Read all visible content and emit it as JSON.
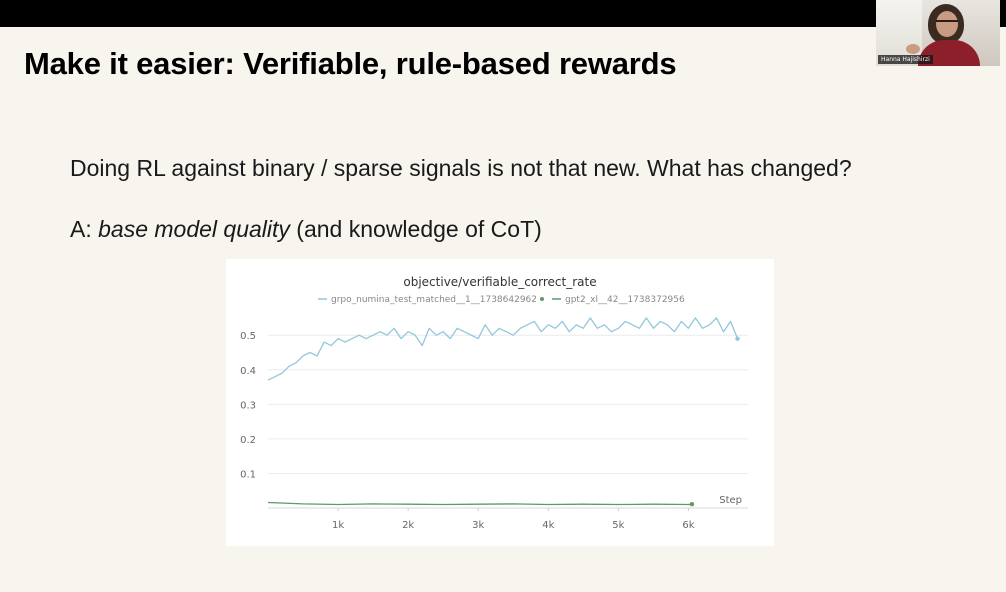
{
  "slide": {
    "title": "Make it easier: Verifiable, rule-based rewards",
    "line1": "Doing RL against binary / sparse signals is not that new. What has changed?",
    "line2_prefix": "A: ",
    "line2_em": "base model quality",
    "line2_suffix": " (and knowledge of CoT)"
  },
  "webcam": {
    "name_label": "Hanna Hajishirzi"
  },
  "chart_data": {
    "type": "line",
    "title": "objective/verifiable_correct_rate",
    "xlabel": "Step",
    "ylabel": "",
    "xlim": [
      0,
      6850
    ],
    "ylim": [
      0,
      0.57
    ],
    "x_ticks": [
      1000,
      2000,
      3000,
      4000,
      5000,
      6000
    ],
    "x_tick_labels": [
      "1k",
      "2k",
      "3k",
      "4k",
      "5k",
      "6k"
    ],
    "y_ticks": [
      0.1,
      0.2,
      0.3,
      0.4,
      0.5
    ],
    "y_tick_labels": [
      "0.1",
      "0.2",
      "0.3",
      "0.4",
      "0.5"
    ],
    "grid": true,
    "legend": "top",
    "series": [
      {
        "name": "grpo_numina_test_matched__1__1738642962",
        "color": "#93c7dc",
        "x": [
          0,
          100,
          200,
          300,
          400,
          500,
          600,
          700,
          800,
          900,
          1000,
          1100,
          1200,
          1300,
          1400,
          1500,
          1600,
          1700,
          1800,
          1900,
          2000,
          2100,
          2200,
          2300,
          2400,
          2500,
          2600,
          2700,
          2800,
          2900,
          3000,
          3100,
          3200,
          3300,
          3400,
          3500,
          3600,
          3700,
          3800,
          3900,
          4000,
          4100,
          4200,
          4300,
          4400,
          4500,
          4600,
          4700,
          4800,
          4900,
          5000,
          5100,
          5200,
          5300,
          5400,
          5500,
          5600,
          5700,
          5800,
          5900,
          6000,
          6100,
          6200,
          6300,
          6400,
          6500,
          6600,
          6700
        ],
        "y": [
          0.37,
          0.38,
          0.39,
          0.41,
          0.42,
          0.44,
          0.45,
          0.44,
          0.48,
          0.47,
          0.49,
          0.48,
          0.49,
          0.5,
          0.49,
          0.5,
          0.51,
          0.5,
          0.52,
          0.49,
          0.51,
          0.5,
          0.47,
          0.52,
          0.5,
          0.51,
          0.49,
          0.52,
          0.51,
          0.5,
          0.49,
          0.53,
          0.5,
          0.52,
          0.51,
          0.5,
          0.52,
          0.53,
          0.54,
          0.51,
          0.53,
          0.52,
          0.54,
          0.51,
          0.53,
          0.52,
          0.55,
          0.52,
          0.53,
          0.51,
          0.52,
          0.54,
          0.53,
          0.52,
          0.55,
          0.52,
          0.54,
          0.53,
          0.51,
          0.54,
          0.52,
          0.55,
          0.52,
          0.53,
          0.55,
          0.51,
          0.54,
          0.49
        ]
      },
      {
        "name": "gpt2_xl__42__1738372956",
        "color": "#5e9a6a",
        "x": [
          0,
          500,
          1000,
          1500,
          2000,
          2500,
          3000,
          3500,
          4000,
          4500,
          5000,
          5500,
          6000,
          6050
        ],
        "y": [
          0.016,
          0.012,
          0.01,
          0.012,
          0.011,
          0.01,
          0.011,
          0.012,
          0.01,
          0.011,
          0.01,
          0.011,
          0.01,
          0.011
        ]
      }
    ]
  }
}
